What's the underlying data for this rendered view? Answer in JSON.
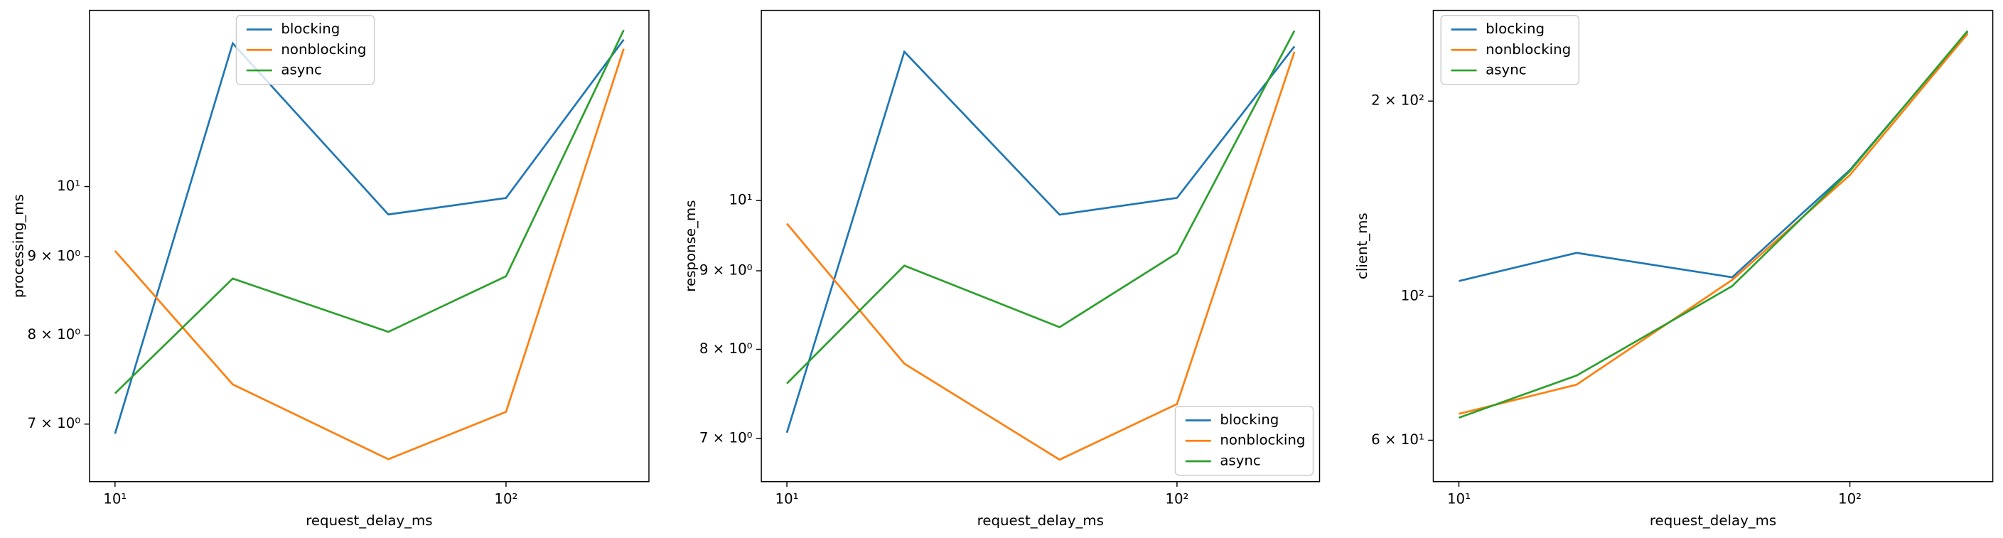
{
  "chart_data": [
    {
      "type": "line",
      "xlabel": "request_delay_ms",
      "ylabel": "processing_ms",
      "xscale": "log",
      "yscale": "log",
      "legend": "upper center",
      "x": [
        10,
        20,
        50,
        100,
        200
      ],
      "xlim": [
        8.6,
        232
      ],
      "ylim": [
        6.42,
        13.03
      ],
      "xticks": [
        {
          "value": 10,
          "label": "10¹"
        },
        {
          "value": 100,
          "label": "10²"
        }
      ],
      "yticks": [
        {
          "value": 7,
          "label": "7 × 10⁰"
        },
        {
          "value": 8,
          "label": "8 × 10⁰"
        },
        {
          "value": 9,
          "label": "9 × 10⁰"
        },
        {
          "value": 10,
          "label": "10¹"
        }
      ],
      "series": [
        {
          "name": "blocking",
          "color": "#1f77b4",
          "values": [
            6.9,
            12.4,
            9.59,
            9.83,
            12.47
          ]
        },
        {
          "name": "nonblocking",
          "color": "#ff7f0e",
          "values": [
            9.08,
            7.43,
            6.64,
            7.13,
            12.3
          ]
        },
        {
          "name": "async",
          "color": "#2ca02c",
          "values": [
            7.33,
            8.71,
            8.04,
            8.74,
            12.65
          ]
        }
      ]
    },
    {
      "type": "line",
      "xlabel": "request_delay_ms",
      "ylabel": "response_ms",
      "xscale": "log",
      "yscale": "log",
      "legend": "lower right",
      "x": [
        10,
        20,
        50,
        100,
        200
      ],
      "xlim": [
        8.6,
        232
      ],
      "ylim": [
        6.56,
        13.3
      ],
      "xticks": [
        {
          "value": 10,
          "label": "10¹"
        },
        {
          "value": 100,
          "label": "10²"
        }
      ],
      "yticks": [
        {
          "value": 7,
          "label": "7 × 10⁰"
        },
        {
          "value": 8,
          "label": "8 × 10⁰"
        },
        {
          "value": 9,
          "label": "9 × 10⁰"
        },
        {
          "value": 10,
          "label": "10¹"
        }
      ],
      "series": [
        {
          "name": "blocking",
          "color": "#1f77b4",
          "values": [
            7.06,
            12.5,
            9.79,
            10.04,
            12.6
          ]
        },
        {
          "name": "nonblocking",
          "color": "#ff7f0e",
          "values": [
            9.66,
            7.83,
            6.78,
            7.37,
            12.5
          ]
        },
        {
          "name": "async",
          "color": "#2ca02c",
          "values": [
            7.6,
            9.07,
            8.27,
            9.24,
            12.9
          ]
        }
      ]
    },
    {
      "type": "line",
      "xlabel": "request_delay_ms",
      "ylabel": "client_ms",
      "xscale": "log",
      "yscale": "log",
      "legend": "upper left",
      "x": [
        10,
        20,
        50,
        100,
        200
      ],
      "xlim": [
        8.6,
        232
      ],
      "ylim": [
        51.8,
        276
      ],
      "xticks": [
        {
          "value": 10,
          "label": "10¹"
        },
        {
          "value": 100,
          "label": "10²"
        }
      ],
      "yticks": [
        {
          "value": 60,
          "label": "6 × 10¹"
        },
        {
          "value": 100,
          "label": "10²"
        },
        {
          "value": 200,
          "label": "2 × 10²"
        }
      ],
      "series": [
        {
          "name": "blocking",
          "color": "#1f77b4",
          "values": [
            105.6,
            116.7,
            107,
            156.6,
            255.6
          ]
        },
        {
          "name": "nonblocking",
          "color": "#ff7f0e",
          "values": [
            65.9,
            73.1,
            106,
            153.8,
            254
          ]
        },
        {
          "name": "async",
          "color": "#2ca02c",
          "values": [
            65.0,
            75.5,
            103.7,
            156,
            256.6
          ]
        }
      ]
    }
  ]
}
